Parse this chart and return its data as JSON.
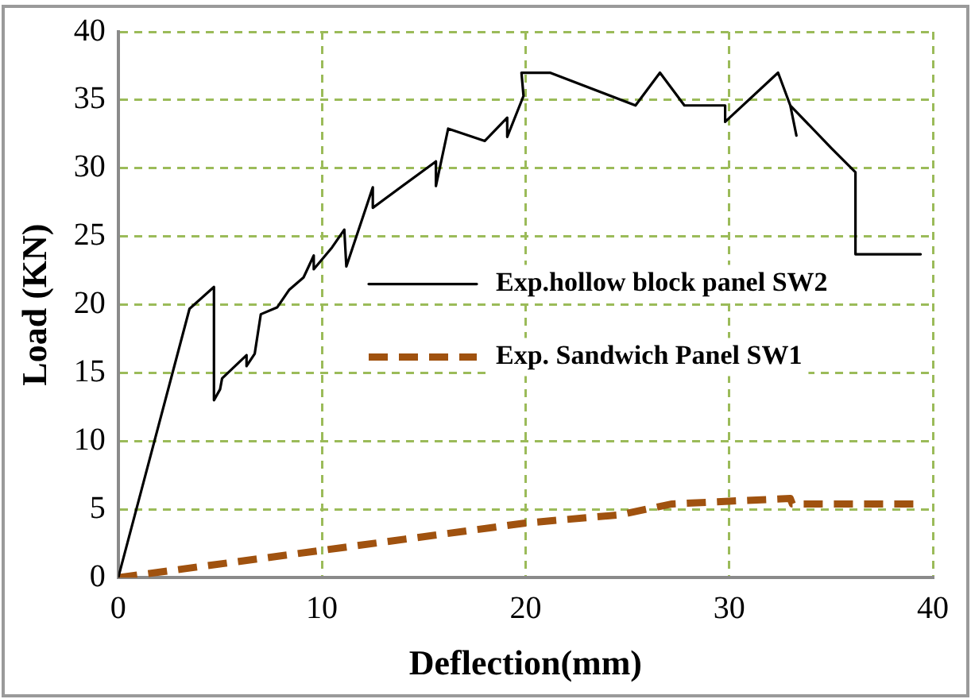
{
  "chart_data": {
    "type": "line",
    "xlabel": "Deflection(mm)",
    "ylabel": "Load (KN)",
    "xlim": [
      0,
      40
    ],
    "xticks": [
      0,
      10,
      20,
      30,
      40
    ],
    "ylim": [
      0,
      40
    ],
    "yticks": [
      0,
      5,
      10,
      15,
      20,
      25,
      30,
      35,
      40
    ],
    "grid": true,
    "legend": "right",
    "marker": "none",
    "series": [
      {
        "name": "Exp.hollow block panel SW2",
        "color": "#000000",
        "line_style": "solid",
        "x": [
          0,
          3.5,
          4.7,
          4.7,
          5.0,
          5.1,
          6.3,
          6.3,
          6.7,
          7.0,
          7.8,
          8.4,
          9.1,
          9.6,
          9.6,
          10.5,
          11.1,
          11.2,
          12.5,
          12.5,
          15.6,
          15.6,
          16.2,
          18.0,
          19.1,
          19.1,
          19.9,
          19.8,
          21.2,
          25.4,
          26.6,
          27.8,
          29.8,
          29.8,
          32.4,
          33.0,
          33.3,
          33.0,
          35.0,
          36.2,
          36.2,
          39.4
        ],
        "values": [
          0,
          19.7,
          21.3,
          13.0,
          13.8,
          14.6,
          16.3,
          15.5,
          16.4,
          19.3,
          19.8,
          21.1,
          22.0,
          23.6,
          22.6,
          24.2,
          25.5,
          22.8,
          28.6,
          27.1,
          30.5,
          28.7,
          32.9,
          32.0,
          33.7,
          32.3,
          35.3,
          37.0,
          37.0,
          34.6,
          37.0,
          34.6,
          34.6,
          33.4,
          37.0,
          34.6,
          32.4,
          34.6,
          31.5,
          29.7,
          23.7,
          23.7
        ]
      },
      {
        "name": "Exp. Sandwich Panel SW1",
        "color": "#a0520f",
        "line_style": "dashed",
        "x": [
          0,
          10,
          20,
          24.6,
          27.2,
          30,
          33.0,
          33.1,
          39.4
        ],
        "values": [
          0,
          2.0,
          4.0,
          4.6,
          5.4,
          5.6,
          5.8,
          5.4,
          5.4
        ]
      }
    ]
  }
}
